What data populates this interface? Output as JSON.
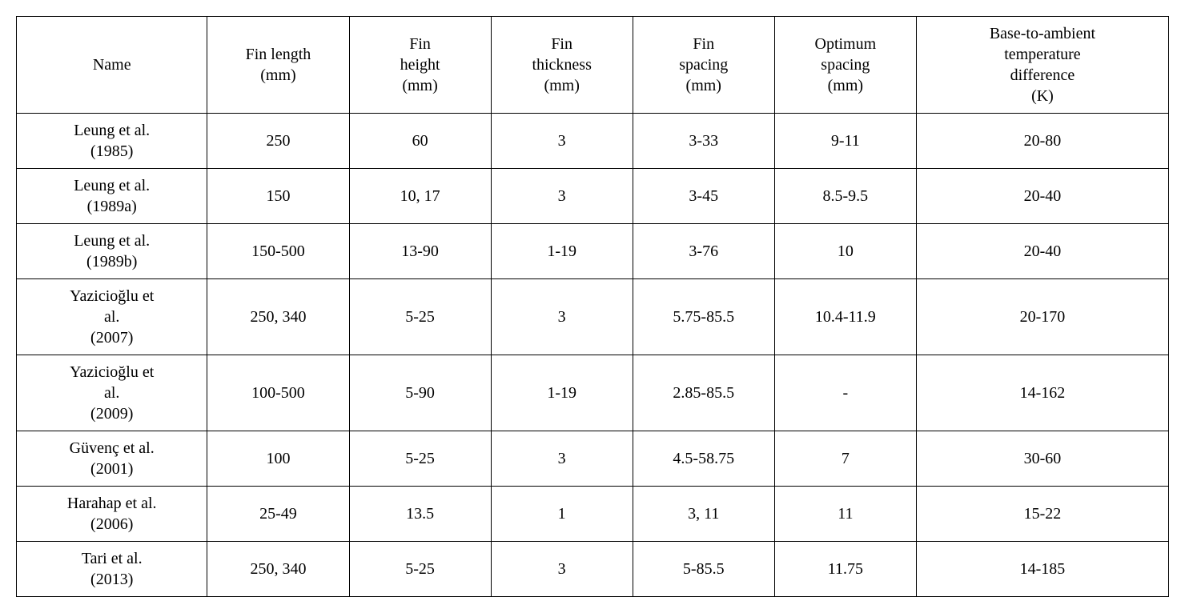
{
  "table": {
    "columns": [
      "Name",
      "Fin length\n(mm)",
      "Fin\nheight\n(mm)",
      "Fin\nthickness\n(mm)",
      "Fin\nspacing\n(mm)",
      "Optimum\nspacing\n(mm)",
      "Base-to-ambient\ntemperature\ndifference\n(K)"
    ],
    "rows": [
      {
        "name": "Leung et al.\n(1985)",
        "fin_length": "250",
        "fin_height": "60",
        "fin_thickness": "3",
        "fin_spacing": "3-33",
        "optimum_spacing": "9-11",
        "temp_diff": "20-80",
        "height_class": "row-h1"
      },
      {
        "name": "Leung et al.\n(1989a)",
        "fin_length": "150",
        "fin_height": "10, 17",
        "fin_thickness": "3",
        "fin_spacing": "3-45",
        "optimum_spacing": "8.5-9.5",
        "temp_diff": "20-40",
        "height_class": "row-h1"
      },
      {
        "name": "Leung et al.\n(1989b)",
        "fin_length": "150-500",
        "fin_height": "13-90",
        "fin_thickness": "1-19",
        "fin_spacing": "3-76",
        "optimum_spacing": "10",
        "temp_diff": "20-40",
        "height_class": "row-h1"
      },
      {
        "name": "Yazicioğlu et\nal.\n(2007)",
        "fin_length": "250, 340",
        "fin_height": "5-25",
        "fin_thickness": "3",
        "fin_spacing": "5.75-85.5",
        "optimum_spacing": "10.4-11.9",
        "temp_diff": "20-170",
        "height_class": "row-h2"
      },
      {
        "name": "Yazicioğlu et\nal.\n(2009)",
        "fin_length": "100-500",
        "fin_height": "5-90",
        "fin_thickness": "1-19",
        "fin_spacing": "2.85-85.5",
        "optimum_spacing": "-",
        "temp_diff": "14-162",
        "height_class": "row-h2"
      },
      {
        "name": "Güvenç et al.\n(2001)",
        "fin_length": "100",
        "fin_height": "5-25",
        "fin_thickness": "3",
        "fin_spacing": "4.5-58.75",
        "optimum_spacing": "7",
        "temp_diff": "30-60",
        "height_class": "row-h1"
      },
      {
        "name": "Harahap et al.\n(2006)",
        "fin_length": "25-49",
        "fin_height": "13.5",
        "fin_thickness": "1",
        "fin_spacing": "3, 11",
        "optimum_spacing": "11",
        "temp_diff": "15-22",
        "height_class": "row-h1"
      },
      {
        "name": "Tari et al.\n(2013)",
        "fin_length": "250, 340",
        "fin_height": "5-25",
        "fin_thickness": "3",
        "fin_spacing": "5-85.5",
        "optimum_spacing": "11.75",
        "temp_diff": "14-185",
        "height_class": "row-h1"
      }
    ],
    "column_widths": [
      "14%",
      "10.4%",
      "10.4%",
      "10.4%",
      "10.4%",
      "10.4%",
      "18.5%"
    ],
    "border_color": "#000000",
    "background_color": "#ffffff",
    "font_size": 20,
    "font_family": "Times New Roman"
  }
}
